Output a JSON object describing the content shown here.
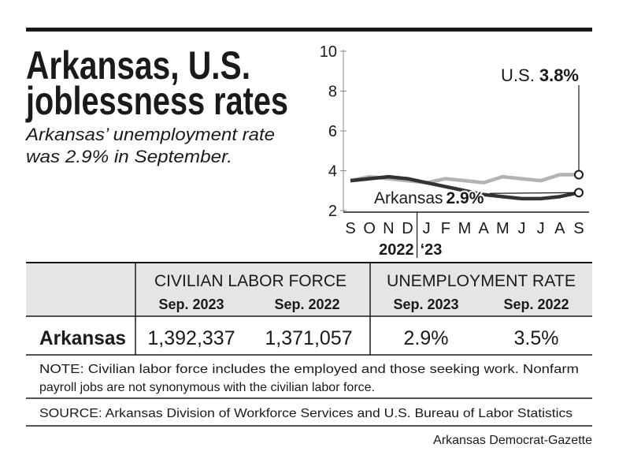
{
  "header": {
    "title_lines": [
      "Arkansas, U.S.",
      "joblessness rates"
    ],
    "subtitle_lines": [
      "Arkansas’ unemployment rate",
      "was 2.9% in September."
    ]
  },
  "chart_data": {
    "type": "line",
    "categories": [
      "S",
      "O",
      "N",
      "D",
      "J",
      "F",
      "M",
      "A",
      "M",
      "J",
      "J",
      "A",
      "S"
    ],
    "year_labels": [
      "2022",
      "‘23"
    ],
    "ylim": [
      2,
      10
    ],
    "yticks": [
      2,
      4,
      6,
      8,
      10
    ],
    "series": [
      {
        "name": "U.S.",
        "color": "#b3b3b3",
        "end_label": "3.8%",
        "values": [
          3.5,
          3.7,
          3.6,
          3.5,
          3.4,
          3.6,
          3.5,
          3.4,
          3.7,
          3.6,
          3.5,
          3.8,
          3.8
        ]
      },
      {
        "name": "Arkansas",
        "color": "#333333",
        "end_label": "2.9%",
        "values": [
          3.5,
          3.6,
          3.7,
          3.6,
          3.4,
          3.2,
          3.0,
          2.8,
          2.7,
          2.6,
          2.6,
          2.7,
          2.9
        ]
      }
    ]
  },
  "table": {
    "group_headers": [
      "CIVILIAN LABOR FORCE",
      "UNEMPLOYMENT RATE"
    ],
    "subheaders": [
      "Sep. 2023",
      "Sep. 2022",
      "Sep. 2023",
      "Sep. 2022"
    ],
    "rows": [
      [
        "Arkansas",
        "1,392,337",
        "1,371,057",
        "2.9%",
        "3.5%"
      ]
    ]
  },
  "note_lines": [
    "NOTE: Civilian labor force includes the employed and those seeking work. Nonfarm",
    "payroll jobs are not synonymous with the civilian labor force."
  ],
  "source": "SOURCE: Arkansas Division of Workforce Services and U.S. Bureau of Labor Statistics",
  "credit": "Arkansas Democrat-Gazette"
}
